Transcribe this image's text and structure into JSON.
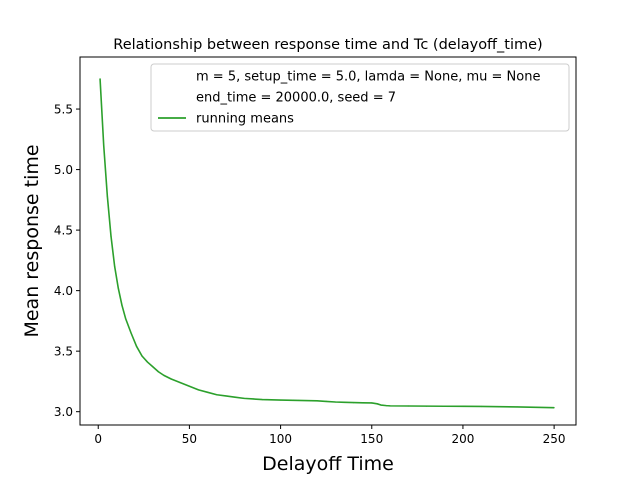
{
  "chart_data": {
    "type": "line",
    "title": "Relationship between response time and Tc (delayoff_time)",
    "xlabel": "Delayoff Time",
    "ylabel": "Mean response time",
    "xlim": [
      -10,
      262
    ],
    "ylim": [
      2.89,
      5.93
    ],
    "xticks": [
      0,
      50,
      100,
      150,
      200,
      250
    ],
    "yticks": [
      3.0,
      3.5,
      4.0,
      4.5,
      5.0,
      5.5
    ],
    "xtick_labels": [
      "0",
      "50",
      "100",
      "150",
      "200",
      "250"
    ],
    "ytick_labels": [
      "3.0",
      "3.5",
      "4.0",
      "4.5",
      "5.0",
      "5.5"
    ],
    "grid": false,
    "legend_position": "top-right",
    "legend": [
      {
        "label": "m = 5, setup_time = 5.0, lamda = None, mu = None",
        "color": null
      },
      {
        "label": "end_time = 20000.0, seed = 7",
        "color": null
      },
      {
        "label": "running means",
        "color": "#2ca02c"
      }
    ],
    "series": [
      {
        "name": "running means",
        "color": "#2ca02c",
        "x": [
          1,
          3,
          5,
          7,
          9,
          11,
          13,
          15,
          18,
          21,
          24,
          27,
          30,
          33,
          36,
          40,
          45,
          50,
          55,
          60,
          65,
          70,
          75,
          80,
          85,
          90,
          95,
          100,
          110,
          120,
          125,
          130,
          135,
          140,
          145,
          150,
          153,
          155,
          158,
          160,
          170,
          180,
          190,
          200,
          210,
          220,
          230,
          240,
          250
        ],
        "y": [
          5.75,
          5.2,
          4.78,
          4.45,
          4.2,
          4.02,
          3.88,
          3.77,
          3.65,
          3.54,
          3.46,
          3.41,
          3.37,
          3.33,
          3.3,
          3.27,
          3.24,
          3.21,
          3.18,
          3.16,
          3.14,
          3.13,
          3.12,
          3.11,
          3.105,
          3.1,
          3.098,
          3.096,
          3.093,
          3.09,
          3.085,
          3.08,
          3.077,
          3.075,
          3.073,
          3.072,
          3.065,
          3.055,
          3.05,
          3.048,
          3.047,
          3.046,
          3.045,
          3.044,
          3.043,
          3.041,
          3.039,
          3.036,
          3.033
        ]
      }
    ]
  }
}
